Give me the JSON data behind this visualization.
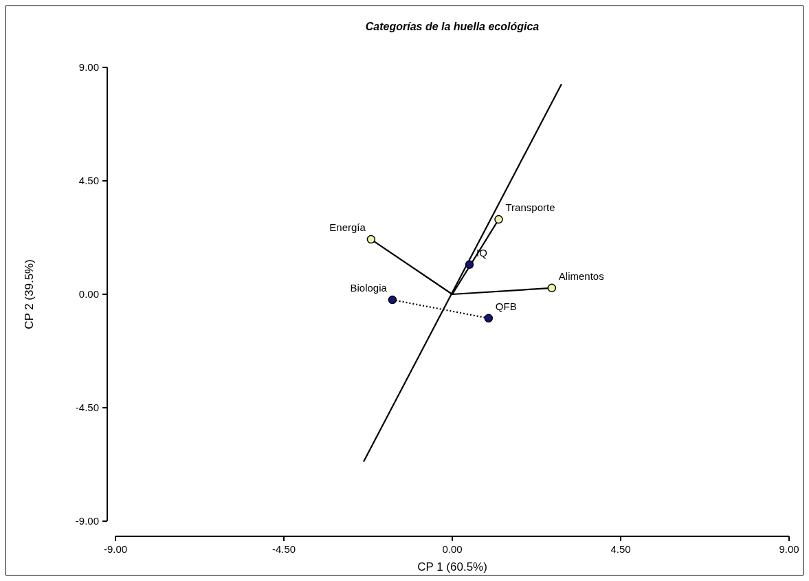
{
  "chart_data": {
    "type": "scatter",
    "title": "Categorías de la huella ecológica",
    "xlabel": "CP 1 (60.5%)",
    "ylabel": "CP 2 (39.5%)",
    "xlim": [
      -9,
      9
    ],
    "ylim": [
      -9,
      9
    ],
    "xticks": [
      {
        "value": -9,
        "label": "-9.00"
      },
      {
        "value": -4.5,
        "label": "-4.50"
      },
      {
        "value": 0,
        "label": "0.00"
      },
      {
        "value": 4.5,
        "label": "4.50"
      },
      {
        "value": 9,
        "label": "9.00"
      }
    ],
    "yticks": [
      {
        "value": -9,
        "label": "-9.00"
      },
      {
        "value": -4.5,
        "label": "-4.50"
      },
      {
        "value": 0,
        "label": "0.00"
      },
      {
        "value": 4.5,
        "label": "4.50"
      },
      {
        "value": 9,
        "label": "9.00"
      }
    ],
    "grid": false,
    "series": [
      {
        "type": "line",
        "color": "#000000",
        "line_style": "solid",
        "x": [
          -2.37,
          2.92
        ],
        "values": [
          -6.64,
          8.34
        ]
      },
      {
        "type": "line",
        "color": "#000000",
        "line_style": "dotted",
        "x": [
          -1.6,
          0.97
        ],
        "values": [
          -0.22,
          -0.95
        ]
      },
      {
        "type": "line",
        "color": "#000000",
        "line_style": "solid",
        "x": [
          0,
          -2.17
        ],
        "values": [
          0,
          2.18
        ]
      },
      {
        "type": "line",
        "color": "#000000",
        "line_style": "solid",
        "x": [
          0,
          1.24
        ],
        "values": [
          0,
          2.97
        ]
      },
      {
        "type": "line",
        "color": "#000000",
        "line_style": "solid",
        "x": [
          0,
          2.66
        ],
        "values": [
          0,
          0.25
        ]
      },
      {
        "color": "#f2f2b0",
        "marker": "circle",
        "x": [
          -2.17,
          1.24,
          2.66
        ],
        "values": [
          2.18,
          2.97,
          0.25
        ]
      },
      {
        "color": "#14147a",
        "marker": "circle",
        "x": [
          0.46,
          -1.6,
          0.97
        ],
        "values": [
          1.18,
          -0.22,
          -0.95
        ]
      }
    ],
    "annotations": [
      {
        "text": "Energía",
        "x": -2.17,
        "y": 2.18
      },
      {
        "text": "Transporte",
        "x": 1.24,
        "y": 2.97
      },
      {
        "text": "Alimentos",
        "x": 2.66,
        "y": 0.25
      },
      {
        "text": "IQ",
        "x": 0.46,
        "y": 1.18
      },
      {
        "text": "Biologia",
        "x": -1.6,
        "y": -0.22
      },
      {
        "text": "QFB",
        "x": 0.97,
        "y": -0.95
      }
    ]
  }
}
